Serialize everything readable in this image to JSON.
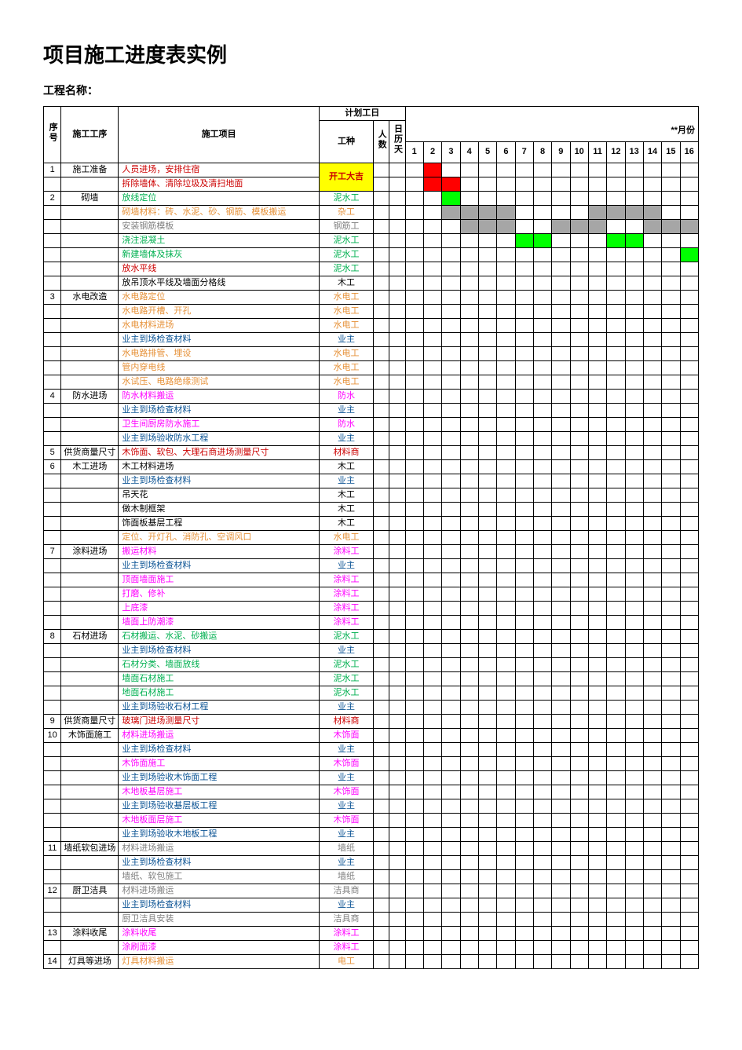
{
  "title": "项目施工进度表实例",
  "subtitle": "工程名称：",
  "header": {
    "seq": "序号",
    "phase": "施工工序",
    "item": "施工项目",
    "plan": "计划工日",
    "work": "工种",
    "people": "人数",
    "days": "日历天",
    "month": "**月份",
    "dayNumbers": [
      "1",
      "2",
      "3",
      "4",
      "5",
      "6",
      "7",
      "8",
      "9",
      "10",
      "11",
      "12",
      "13",
      "14",
      "15",
      "16"
    ]
  },
  "colors": {
    "red": "#cc0000",
    "orange": "#e69138",
    "blue": "#0b5394",
    "green": "#00b050",
    "magenta": "#ff00ff",
    "gray": "#808080",
    "black": "#000000",
    "bgYellow": "#ffff00",
    "bgRed": "#ff0000",
    "bgGreen": "#00ff00",
    "bgGray": "#a6a6a6"
  },
  "kickoff": "开工大吉",
  "rows": [
    {
      "seq": "1",
      "phase": "施工准备",
      "item": "人员进场，安排住宿",
      "itemColor": "red",
      "work": "",
      "workColor": "black",
      "workBg": "bgYellow",
      "workBold": true,
      "bars": [
        {
          "start": 2,
          "end": 2,
          "color": "bgRed"
        }
      ],
      "kickoffCell": true,
      "kickoffRowspan": 2
    },
    {
      "seq": "",
      "phase": "",
      "item": "拆除墙体、清除垃圾及清扫地面",
      "itemColor": "red",
      "work": "",
      "workColor": "black",
      "bars": [
        {
          "start": 2,
          "end": 3,
          "color": "bgRed"
        }
      ]
    },
    {
      "seq": "2",
      "phase": "砌墙",
      "item": "放线定位",
      "itemColor": "green",
      "work": "泥水工",
      "workColor": "green",
      "bars": [
        {
          "start": 3,
          "end": 3,
          "color": "bgGreen"
        }
      ]
    },
    {
      "seq": "",
      "phase": "",
      "item": "砌墙材料：砖、水泥、砂、钢筋、模板搬运",
      "itemColor": "orange",
      "work": "杂工",
      "workColor": "orange",
      "bars": [
        {
          "start": 3,
          "end": 6,
          "color": "bgGray"
        },
        {
          "start": 11,
          "end": 14,
          "color": "bgGray"
        }
      ]
    },
    {
      "seq": "",
      "phase": "",
      "item": "安装钢筋模板",
      "itemColor": "gray",
      "work": "钢筋工",
      "workColor": "gray",
      "bars": [
        {
          "start": 4,
          "end": 6,
          "color": "bgGray"
        },
        {
          "start": 9,
          "end": 11,
          "color": "bgGray"
        },
        {
          "start": 14,
          "end": 16,
          "color": "bgGray"
        }
      ]
    },
    {
      "seq": "",
      "phase": "",
      "item": "浇注混凝土",
      "itemColor": "green",
      "work": "泥水工",
      "workColor": "green",
      "bars": [
        {
          "start": 7,
          "end": 8,
          "color": "bgGreen"
        },
        {
          "start": 12,
          "end": 13,
          "color": "bgGreen"
        }
      ]
    },
    {
      "seq": "",
      "phase": "",
      "item": "新建墙体及抹灰",
      "itemColor": "green",
      "work": "泥水工",
      "workColor": "green",
      "bars": [
        {
          "start": 16,
          "end": 16,
          "color": "bgGreen"
        }
      ]
    },
    {
      "seq": "",
      "phase": "",
      "item": "放水平线",
      "itemColor": "red",
      "work": "泥水工",
      "workColor": "green",
      "bars": []
    },
    {
      "seq": "",
      "phase": "",
      "item": "放吊顶水平线及墙面分格线",
      "itemColor": "black",
      "work": "木工",
      "workColor": "black",
      "bars": []
    },
    {
      "seq": "3",
      "phase": "水电改造",
      "item": "水电路定位",
      "itemColor": "orange",
      "work": "水电工",
      "workColor": "orange",
      "bars": []
    },
    {
      "seq": "",
      "phase": "",
      "item": "水电路开槽、开孔",
      "itemColor": "orange",
      "work": "水电工",
      "workColor": "orange",
      "bars": []
    },
    {
      "seq": "",
      "phase": "",
      "item": "水电材料进场",
      "itemColor": "orange",
      "work": "水电工",
      "workColor": "orange",
      "bars": []
    },
    {
      "seq": "",
      "phase": "",
      "item": "业主到场检查材料",
      "itemColor": "blue",
      "work": "业主",
      "workColor": "blue",
      "bars": []
    },
    {
      "seq": "",
      "phase": "",
      "item": "水电路排管、埋设",
      "itemColor": "orange",
      "work": "水电工",
      "workColor": "orange",
      "bars": []
    },
    {
      "seq": "",
      "phase": "",
      "item": "管内穿电线",
      "itemColor": "orange",
      "work": "水电工",
      "workColor": "orange",
      "bars": []
    },
    {
      "seq": "",
      "phase": "",
      "item": "水试压、电路绝缘测试",
      "itemColor": "orange",
      "work": "水电工",
      "workColor": "orange",
      "bars": []
    },
    {
      "seq": "4",
      "phase": "防水进场",
      "item": "防水材料搬运",
      "itemColor": "magenta",
      "work": "防水",
      "workColor": "magenta",
      "bars": []
    },
    {
      "seq": "",
      "phase": "",
      "item": "业主到场检查材料",
      "itemColor": "blue",
      "work": "业主",
      "workColor": "blue",
      "bars": []
    },
    {
      "seq": "",
      "phase": "",
      "item": "卫生间厨房防水施工",
      "itemColor": "magenta",
      "work": "防水",
      "workColor": "magenta",
      "bars": []
    },
    {
      "seq": "",
      "phase": "",
      "item": "业主到场验收防水工程",
      "itemColor": "blue",
      "work": "业主",
      "workColor": "blue",
      "bars": []
    },
    {
      "seq": "5",
      "phase": "供货商量尺寸",
      "item": "木饰面、软包、大理石商进场测量尺寸",
      "itemColor": "red",
      "work": "材料商",
      "workColor": "red",
      "bars": []
    },
    {
      "seq": "6",
      "phase": "木工进场",
      "item": "木工材料进场",
      "itemColor": "black",
      "work": "木工",
      "workColor": "black",
      "bars": []
    },
    {
      "seq": "",
      "phase": "",
      "item": "业主到场检查材料",
      "itemColor": "blue",
      "work": "业主",
      "workColor": "blue",
      "bars": []
    },
    {
      "seq": "",
      "phase": "",
      "item": "吊天花",
      "itemColor": "black",
      "work": "木工",
      "workColor": "black",
      "bars": []
    },
    {
      "seq": "",
      "phase": "",
      "item": "做木制框架",
      "itemColor": "black",
      "work": "木工",
      "workColor": "black",
      "bars": []
    },
    {
      "seq": "",
      "phase": "",
      "item": "饰面板基层工程",
      "itemColor": "black",
      "work": "木工",
      "workColor": "black",
      "bars": []
    },
    {
      "seq": "",
      "phase": "",
      "item": "定位、开灯孔、消防孔、空调风口",
      "itemColor": "orange",
      "work": "水电工",
      "workColor": "orange",
      "bars": []
    },
    {
      "seq": "7",
      "phase": "涂料进场",
      "item": "搬运材料",
      "itemColor": "magenta",
      "work": "涂料工",
      "workColor": "magenta",
      "bars": []
    },
    {
      "seq": "",
      "phase": "",
      "item": "业主到场检查材料",
      "itemColor": "blue",
      "work": "业主",
      "workColor": "blue",
      "bars": []
    },
    {
      "seq": "",
      "phase": "",
      "item": "顶面墙面施工",
      "itemColor": "magenta",
      "work": "涂料工",
      "workColor": "magenta",
      "bars": []
    },
    {
      "seq": "",
      "phase": "",
      "item": "打磨、修补",
      "itemColor": "magenta",
      "work": "涂料工",
      "workColor": "magenta",
      "bars": []
    },
    {
      "seq": "",
      "phase": "",
      "item": "上底漆",
      "itemColor": "magenta",
      "work": "涂料工",
      "workColor": "magenta",
      "bars": []
    },
    {
      "seq": "",
      "phase": "",
      "item": "墙面上防潮漆",
      "itemColor": "magenta",
      "work": "涂料工",
      "workColor": "magenta",
      "bars": []
    },
    {
      "seq": "8",
      "phase": "石材进场",
      "item": "石材搬运、水泥、砂搬运",
      "itemColor": "green",
      "work": "泥水工",
      "workColor": "green",
      "bars": []
    },
    {
      "seq": "",
      "phase": "",
      "item": "业主到场检查材料",
      "itemColor": "blue",
      "work": "业主",
      "workColor": "blue",
      "bars": []
    },
    {
      "seq": "",
      "phase": "",
      "item": "石材分类、墙面放线",
      "itemColor": "green",
      "work": "泥水工",
      "workColor": "green",
      "bars": []
    },
    {
      "seq": "",
      "phase": "",
      "item": "墙面石材施工",
      "itemColor": "green",
      "work": "泥水工",
      "workColor": "green",
      "bars": []
    },
    {
      "seq": "",
      "phase": "",
      "item": "地面石材施工",
      "itemColor": "green",
      "work": "泥水工",
      "workColor": "green",
      "bars": []
    },
    {
      "seq": "",
      "phase": "",
      "item": "业主到场验收石材工程",
      "itemColor": "blue",
      "work": "业主",
      "workColor": "blue",
      "bars": []
    },
    {
      "seq": "9",
      "phase": "供货商量尺寸",
      "item": "玻璃门进场测量尺寸",
      "itemColor": "red",
      "work": "材料商",
      "workColor": "red",
      "bars": []
    },
    {
      "seq": "10",
      "phase": "木饰面施工",
      "item": "材料进场搬运",
      "itemColor": "magenta",
      "work": "木饰面",
      "workColor": "magenta",
      "bars": []
    },
    {
      "seq": "",
      "phase": "",
      "item": "业主到场检查材料",
      "itemColor": "blue",
      "work": "业主",
      "workColor": "blue",
      "bars": []
    },
    {
      "seq": "",
      "phase": "",
      "item": "木饰面施工",
      "itemColor": "magenta",
      "work": "木饰面",
      "workColor": "magenta",
      "bars": []
    },
    {
      "seq": "",
      "phase": "",
      "item": "业主到场验收木饰面工程",
      "itemColor": "blue",
      "work": "业主",
      "workColor": "blue",
      "bars": []
    },
    {
      "seq": "",
      "phase": "",
      "item": "木地板基层施工",
      "itemColor": "magenta",
      "work": "木饰面",
      "workColor": "magenta",
      "bars": []
    },
    {
      "seq": "",
      "phase": "",
      "item": "业主到场验收基层板工程",
      "itemColor": "blue",
      "work": "业主",
      "workColor": "blue",
      "bars": []
    },
    {
      "seq": "",
      "phase": "",
      "item": "木地板面层施工",
      "itemColor": "magenta",
      "work": "木饰面",
      "workColor": "magenta",
      "bars": []
    },
    {
      "seq": "",
      "phase": "",
      "item": "业主到场验收木地板工程",
      "itemColor": "blue",
      "work": "业主",
      "workColor": "blue",
      "bars": []
    },
    {
      "seq": "11",
      "phase": "墙纸软包进场",
      "item": "材料进场搬运",
      "itemColor": "gray",
      "work": "墙纸",
      "workColor": "gray",
      "bars": []
    },
    {
      "seq": "",
      "phase": "",
      "item": "业主到场检查材料",
      "itemColor": "blue",
      "work": "业主",
      "workColor": "blue",
      "bars": []
    },
    {
      "seq": "",
      "phase": "",
      "item": "墙纸、软包施工",
      "itemColor": "gray",
      "work": "墙纸",
      "workColor": "gray",
      "bars": []
    },
    {
      "seq": "12",
      "phase": "厨卫洁具",
      "item": "材料进场搬运",
      "itemColor": "gray",
      "work": "洁具商",
      "workColor": "gray",
      "bars": []
    },
    {
      "seq": "",
      "phase": "",
      "item": "业主到场检查材料",
      "itemColor": "blue",
      "work": "业主",
      "workColor": "blue",
      "bars": []
    },
    {
      "seq": "",
      "phase": "",
      "item": "厨卫洁具安装",
      "itemColor": "gray",
      "work": "洁具商",
      "workColor": "gray",
      "bars": []
    },
    {
      "seq": "13",
      "phase": "涂料收尾",
      "item": "涂料收尾",
      "itemColor": "magenta",
      "work": "涂料工",
      "workColor": "magenta",
      "bars": []
    },
    {
      "seq": "",
      "phase": "",
      "item": "涂刷面漆",
      "itemColor": "magenta",
      "work": "涂料工",
      "workColor": "magenta",
      "bars": []
    },
    {
      "seq": "14",
      "phase": "灯具等进场",
      "item": "灯具材料搬运",
      "itemColor": "orange",
      "work": "电工",
      "workColor": "orange",
      "bars": []
    }
  ]
}
